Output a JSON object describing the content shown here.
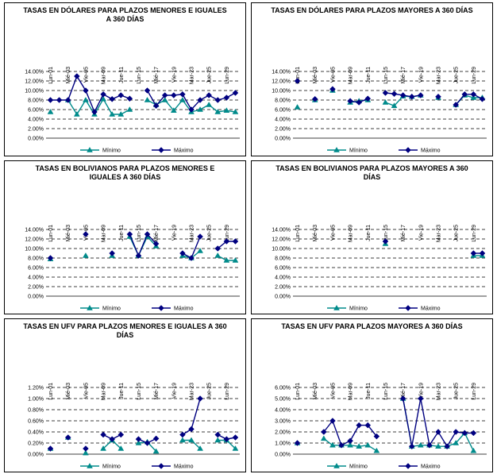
{
  "chart_data": [
    {
      "type": "line",
      "title": "TASAS EN DÓLARES PARA PLAZOS MENORES E IGUALES A 360 DÍAS",
      "categories": [
        "Lun-01",
        null,
        "Mié-03",
        null,
        "Vie-05",
        null,
        "Mar-09",
        null,
        "Jue-11",
        null,
        "Lun-15",
        null,
        "Mié-17",
        null,
        "Vie-19",
        null,
        "Mar-23",
        null,
        "Jue-25",
        null,
        "Lun-29",
        null
      ],
      "series": [
        {
          "name": "Mínimo",
          "color": "#008B8B",
          "values": [
            5.5,
            null,
            8,
            5,
            8,
            5,
            8.2,
            5,
            5,
            6,
            null,
            8,
            7,
            8,
            5.8,
            8,
            5.5,
            6,
            7,
            5.5,
            5.8,
            5.5
          ]
        },
        {
          "name": "Máximo",
          "color": "#000080",
          "values": [
            8,
            8,
            8,
            13,
            10,
            5.5,
            9.2,
            8.2,
            9,
            8.3,
            null,
            10,
            6.8,
            9,
            9,
            9.2,
            6,
            8,
            9,
            8,
            8.5,
            9.5
          ]
        }
      ],
      "ylim": [
        0,
        14
      ],
      "yticks": [
        {
          "value": 0,
          "label": "0.00%"
        },
        {
          "value": 2,
          "label": "2.00%"
        },
        {
          "value": 4,
          "label": "4.00%"
        },
        {
          "value": 6,
          "label": "6.00%"
        },
        {
          "value": 8,
          "label": "8.00%"
        },
        {
          "value": 10,
          "label": "10.00%"
        },
        {
          "value": 12,
          "label": "12.00%"
        },
        {
          "value": 14,
          "label": "14.00%"
        }
      ],
      "grid": true
    },
    {
      "type": "line",
      "title": "TASAS EN DÓLARES PARA PLAZOS MAYORES A 360 DÍAS",
      "categories": [
        "Lun-01",
        null,
        "Mié-03",
        null,
        "Vie-05",
        null,
        "Mar-09",
        null,
        "Jue-11",
        null,
        "Lun-15",
        null,
        "Mié-17",
        null,
        "Vie-19",
        null,
        "Mar-23",
        null,
        "Jue-25",
        null,
        "Lun-29",
        null
      ],
      "series": [
        {
          "name": "Mínimo",
          "color": "#008B8B",
          "values": [
            6.5,
            null,
            8,
            null,
            10,
            null,
            7.5,
            7.8,
            8,
            null,
            7.5,
            6.8,
            8.8,
            8.7,
            9,
            null,
            8.5,
            null,
            7,
            9,
            8.5,
            8.5
          ]
        },
        {
          "name": "Máximo",
          "color": "#000080",
          "values": [
            12,
            null,
            8.2,
            null,
            10.3,
            null,
            7.8,
            7.5,
            8.3,
            null,
            9.5,
            9.3,
            9,
            8.7,
            9,
            null,
            8.7,
            null,
            7,
            9.2,
            9.2,
            8.2
          ]
        }
      ],
      "ylim": [
        0,
        14
      ],
      "yticks": [
        {
          "value": 0,
          "label": "0.00%"
        },
        {
          "value": 2,
          "label": "2.00%"
        },
        {
          "value": 4,
          "label": "4.00%"
        },
        {
          "value": 6,
          "label": "6.00%"
        },
        {
          "value": 8,
          "label": "8.00%"
        },
        {
          "value": 10,
          "label": "10.00%"
        },
        {
          "value": 12,
          "label": "12.00%"
        },
        {
          "value": 14,
          "label": "14.00%"
        }
      ],
      "grid": true
    },
    {
      "type": "line",
      "title": "TASAS EN BOLIVIANOS PARA PLAZOS MENORES E IGUALES A 360 DÍAS",
      "categories": [
        "Lun-01",
        null,
        "Mié-03",
        null,
        "Vie-05",
        null,
        "Mar-09",
        null,
        "Jue-11",
        null,
        "Lun-15",
        null,
        "Mié-17",
        null,
        "Vie-19",
        null,
        "Mar-23",
        null,
        "Jue-25",
        null,
        "Lun-29",
        null
      ],
      "series": [
        {
          "name": "Mínimo",
          "color": "#008B8B",
          "values": [
            7.8,
            null,
            null,
            null,
            8.5,
            null,
            null,
            8.5,
            null,
            12.5,
            8.5,
            12.5,
            10.5,
            null,
            null,
            8.5,
            8,
            9.5,
            null,
            8.5,
            7.5,
            7.5
          ]
        },
        {
          "name": "Máximo",
          "color": "#000080",
          "values": [
            8,
            null,
            null,
            null,
            13,
            null,
            null,
            9,
            null,
            13,
            8.5,
            13,
            11,
            null,
            null,
            9,
            8,
            12.5,
            null,
            10,
            11.5,
            11.5
          ]
        }
      ],
      "ylim": [
        0,
        14
      ],
      "yticks": [
        {
          "value": 0,
          "label": "0.00%"
        },
        {
          "value": 2,
          "label": "2.00%"
        },
        {
          "value": 4,
          "label": "4.00%"
        },
        {
          "value": 6,
          "label": "6.00%"
        },
        {
          "value": 8,
          "label": "8.00%"
        },
        {
          "value": 10,
          "label": "10.00%"
        },
        {
          "value": 12,
          "label": "12.00%"
        },
        {
          "value": 14,
          "label": "14.00%"
        }
      ],
      "grid": true
    },
    {
      "type": "line",
      "title": "TASAS EN BOLIVIANOS PARA PLAZOS MAYORES A 360 DÍAS",
      "categories": [
        "Lun-01",
        null,
        "Mié-03",
        null,
        "Vie-05",
        null,
        "Mar-09",
        null,
        "Jue-11",
        null,
        "Lun-15",
        null,
        "Mié-17",
        null,
        "Vie-19",
        null,
        "Mar-23",
        null,
        "Jue-25",
        null,
        "Lun-29",
        null
      ],
      "series": [
        {
          "name": "Mínimo",
          "color": "#008B8B",
          "values": [
            null,
            null,
            null,
            null,
            null,
            null,
            null,
            null,
            null,
            null,
            11,
            null,
            null,
            null,
            null,
            null,
            null,
            null,
            null,
            null,
            8.5,
            8.5
          ]
        },
        {
          "name": "Máximo",
          "color": "#000080",
          "values": [
            null,
            null,
            null,
            null,
            null,
            null,
            null,
            null,
            null,
            null,
            11.5,
            null,
            null,
            null,
            null,
            null,
            null,
            null,
            null,
            null,
            9,
            9
          ]
        }
      ],
      "ylim": [
        0,
        14
      ],
      "yticks": [
        {
          "value": 0,
          "label": "0.00%"
        },
        {
          "value": 2,
          "label": "2.00%"
        },
        {
          "value": 4,
          "label": "4.00%"
        },
        {
          "value": 6,
          "label": "6.00%"
        },
        {
          "value": 8,
          "label": "8.00%"
        },
        {
          "value": 10,
          "label": "10.00%"
        },
        {
          "value": 12,
          "label": "12.00%"
        },
        {
          "value": 14,
          "label": "14.00%"
        }
      ],
      "grid": true
    },
    {
      "type": "line",
      "title": "TASAS EN UFV PARA PLAZOS MENORES E IGUALES A 360 DÍAS",
      "categories": [
        "Lun-01",
        null,
        "Mié-03",
        null,
        "Vie-05",
        null,
        "Mar-09",
        null,
        "Jue-11",
        null,
        "Lun-15",
        null,
        "Mié-17",
        null,
        "Vie-19",
        null,
        "Mar-23",
        null,
        "Jue-25",
        null,
        "Lun-29",
        null
      ],
      "series": [
        {
          "name": "Mínimo",
          "color": "#008B8B",
          "values": [
            0.1,
            null,
            0.3,
            null,
            0.02,
            null,
            0.1,
            0.25,
            0.1,
            null,
            0.2,
            0.22,
            0.05,
            null,
            null,
            0.25,
            0.25,
            0.1,
            null,
            0.25,
            0.25,
            0.1
          ]
        },
        {
          "name": "Máximo",
          "color": "#000080",
          "values": [
            0.1,
            null,
            0.3,
            null,
            0.1,
            null,
            0.35,
            0.27,
            0.35,
            null,
            0.27,
            0.2,
            0.28,
            null,
            null,
            0.35,
            0.45,
            1.0,
            null,
            0.35,
            0.27,
            0.3
          ]
        }
      ],
      "ylim": [
        0,
        1.2
      ],
      "yticks": [
        {
          "value": 0,
          "label": "0.00%"
        },
        {
          "value": 0.2,
          "label": "0.20%"
        },
        {
          "value": 0.4,
          "label": "0.40%"
        },
        {
          "value": 0.6,
          "label": "0.60%"
        },
        {
          "value": 0.8,
          "label": "0.80%"
        },
        {
          "value": 1.0,
          "label": "1.00%"
        },
        {
          "value": 1.2,
          "label": "1.20%"
        }
      ],
      "grid": true
    },
    {
      "type": "line",
      "title": "TASAS EN UFV PARA PLAZOS MAYORES A 360 DÍAS",
      "categories": [
        "Lun-01",
        null,
        "Mié-03",
        null,
        "Vie-05",
        null,
        "Mar-09",
        null,
        "Jue-11",
        null,
        "Lun-15",
        null,
        "Mié-17",
        null,
        "Vie-19",
        null,
        "Mar-23",
        null,
        "Jue-25",
        null,
        "Lun-29",
        null
      ],
      "series": [
        {
          "name": "Mínimo",
          "color": "#008B8B",
          "values": [
            1.0,
            null,
            null,
            1.4,
            0.8,
            0.8,
            0.8,
            0.7,
            0.8,
            0.3,
            null,
            null,
            5.0,
            0.7,
            0.8,
            0.8,
            0.7,
            0.7,
            1.0,
            1.9,
            0.3,
            null
          ]
        },
        {
          "name": "Máximo",
          "color": "#000080",
          "values": [
            1.0,
            null,
            null,
            2.0,
            3.0,
            0.8,
            1.2,
            2.6,
            2.6,
            1.6,
            null,
            null,
            5.0,
            0.7,
            5.0,
            0.8,
            2.0,
            0.7,
            2.0,
            1.9,
            1.9,
            null
          ]
        }
      ],
      "ylim": [
        0,
        6
      ],
      "yticks": [
        {
          "value": 0,
          "label": "0.00%"
        },
        {
          "value": 1,
          "label": "1.00%"
        },
        {
          "value": 2,
          "label": "2.00%"
        },
        {
          "value": 3,
          "label": "3.00%"
        },
        {
          "value": 4,
          "label": "4.00%"
        },
        {
          "value": 5,
          "label": "5.00%"
        },
        {
          "value": 6,
          "label": "6.00%"
        }
      ],
      "grid": true
    }
  ]
}
